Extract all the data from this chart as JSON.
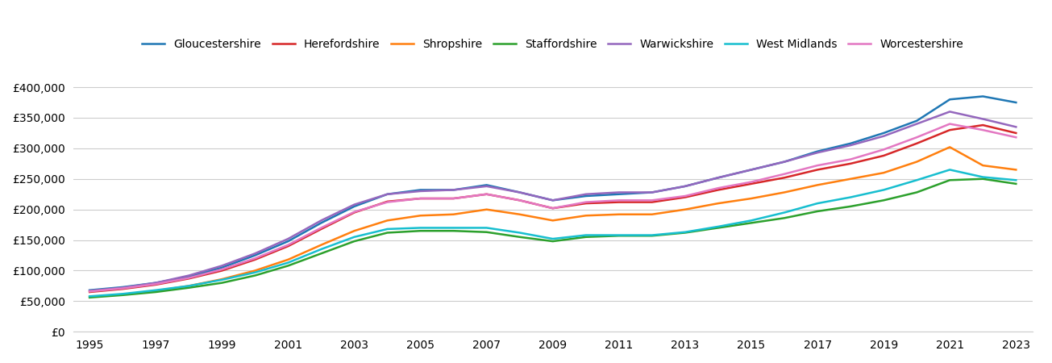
{
  "title": "",
  "years": [
    1995,
    1996,
    1997,
    1998,
    1999,
    2000,
    2001,
    2002,
    2003,
    2004,
    2005,
    2006,
    2007,
    2008,
    2009,
    2010,
    2011,
    2012,
    2013,
    2014,
    2015,
    2016,
    2017,
    2018,
    2019,
    2020,
    2021,
    2022,
    2023
  ],
  "series": {
    "Gloucestershire": {
      "color": "#1f77b4",
      "values": [
        68000,
        73000,
        80000,
        90000,
        105000,
        125000,
        148000,
        178000,
        205000,
        225000,
        232000,
        232000,
        240000,
        228000,
        215000,
        222000,
        225000,
        228000,
        238000,
        252000,
        265000,
        278000,
        295000,
        308000,
        325000,
        345000,
        380000,
        385000,
        375000
      ]
    },
    "Herefordshire": {
      "color": "#d62728",
      "values": [
        65000,
        70000,
        77000,
        87000,
        100000,
        118000,
        140000,
        168000,
        195000,
        213000,
        218000,
        218000,
        225000,
        215000,
        202000,
        210000,
        212000,
        212000,
        220000,
        232000,
        242000,
        252000,
        265000,
        275000,
        288000,
        308000,
        330000,
        338000,
        325000
      ]
    },
    "Shropshire": {
      "color": "#ff7f0e",
      "values": [
        57000,
        61000,
        67000,
        75000,
        86000,
        100000,
        118000,
        142000,
        165000,
        182000,
        190000,
        192000,
        200000,
        192000,
        182000,
        190000,
        192000,
        192000,
        200000,
        210000,
        218000,
        228000,
        240000,
        250000,
        260000,
        278000,
        302000,
        272000,
        265000
      ]
    },
    "Staffordshire": {
      "color": "#2ca02c",
      "values": [
        56000,
        60000,
        65000,
        72000,
        80000,
        92000,
        108000,
        128000,
        148000,
        162000,
        165000,
        165000,
        163000,
        155000,
        148000,
        155000,
        157000,
        157000,
        162000,
        170000,
        178000,
        186000,
        197000,
        205000,
        215000,
        228000,
        248000,
        250000,
        242000
      ]
    },
    "Warwickshire": {
      "color": "#9467bd",
      "values": [
        67000,
        72000,
        80000,
        92000,
        108000,
        128000,
        152000,
        182000,
        208000,
        225000,
        230000,
        232000,
        238000,
        228000,
        215000,
        225000,
        228000,
        228000,
        238000,
        252000,
        265000,
        278000,
        293000,
        305000,
        320000,
        340000,
        360000,
        348000,
        335000
      ]
    },
    "West Midlands": {
      "color": "#17becf",
      "values": [
        58000,
        62000,
        68000,
        75000,
        85000,
        97000,
        113000,
        135000,
        155000,
        168000,
        170000,
        170000,
        170000,
        162000,
        152000,
        158000,
        158000,
        158000,
        163000,
        172000,
        182000,
        195000,
        210000,
        220000,
        232000,
        248000,
        265000,
        253000,
        248000
      ]
    },
    "Worcestershire": {
      "color": "#e377c2",
      "values": [
        66000,
        71000,
        78000,
        88000,
        102000,
        120000,
        142000,
        170000,
        196000,
        212000,
        218000,
        218000,
        225000,
        215000,
        202000,
        212000,
        215000,
        215000,
        222000,
        235000,
        245000,
        258000,
        272000,
        282000,
        298000,
        318000,
        340000,
        330000,
        318000
      ]
    }
  },
  "ylim": [
    0,
    420000
  ],
  "yticks": [
    0,
    50000,
    100000,
    150000,
    200000,
    250000,
    300000,
    350000,
    400000
  ],
  "xticks": [
    1995,
    1997,
    1999,
    2001,
    2003,
    2005,
    2007,
    2009,
    2011,
    2013,
    2015,
    2017,
    2019,
    2021,
    2023
  ],
  "background_color": "#ffffff",
  "grid_color": "#cccccc",
  "legend_fontsize": 10,
  "tick_fontsize": 10,
  "line_width": 1.8
}
